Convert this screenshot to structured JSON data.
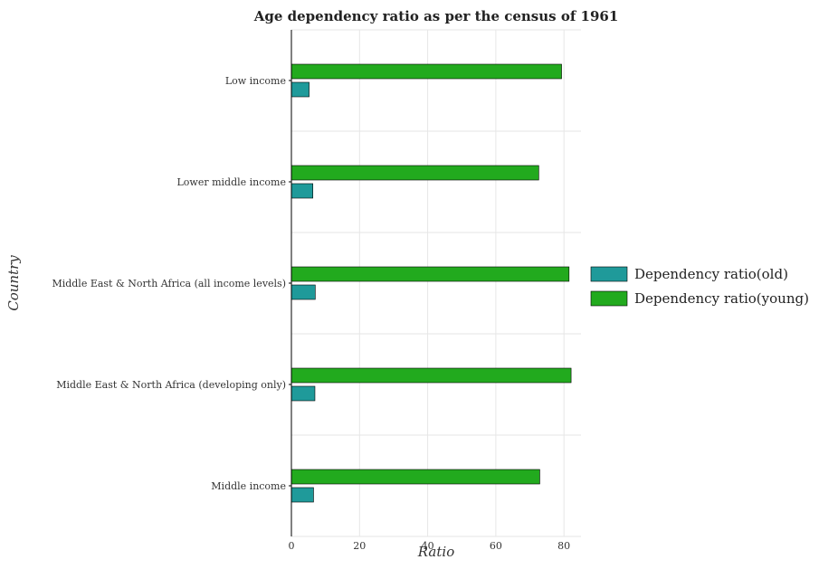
{
  "chart_data": {
    "type": "bar",
    "orientation": "horizontal",
    "title": "Age dependency ratio as per the census of 1961",
    "xlabel": "Ratio",
    "ylabel": "Country",
    "categories": [
      "Low income",
      "Lower middle income",
      "Middle East & North Africa (all income levels)",
      "Middle East & North Africa (developing only)",
      "Middle income"
    ],
    "series": [
      {
        "name": "Dependency ratio(old)",
        "color": "#1f9a9a",
        "values": [
          5.2,
          6.3,
          7.0,
          6.9,
          6.5
        ]
      },
      {
        "name": "Dependency ratio(young)",
        "color": "#22aa1e",
        "values": [
          79.3,
          72.6,
          81.5,
          82.1,
          72.9
        ]
      }
    ],
    "xlim": [
      0,
      85
    ],
    "xticks": [
      0,
      20,
      40,
      60,
      80
    ],
    "grid": true,
    "legend": "right"
  }
}
